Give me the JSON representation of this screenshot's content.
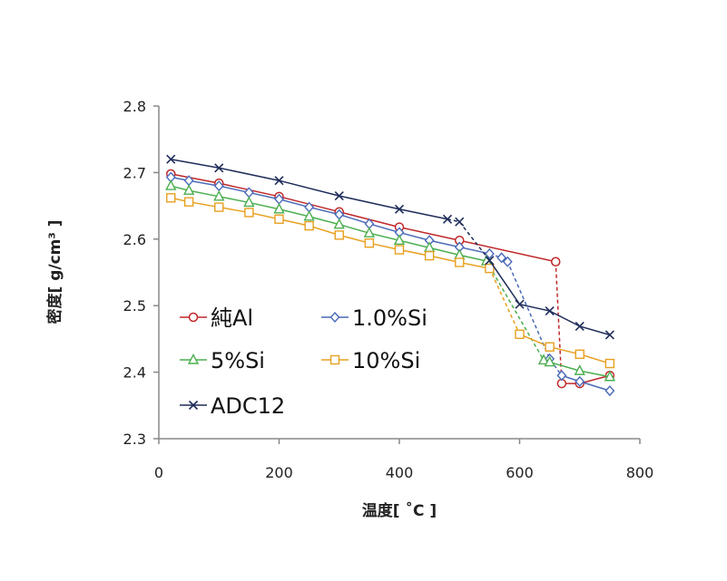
{
  "chart_data": {
    "type": "line",
    "xlabel": "温度[ ˚C ]",
    "ylabel": "密度[ g/cm³ ]",
    "xlim": [
      0,
      800
    ],
    "ylim": [
      2.3,
      2.8
    ],
    "xticks": [
      "0",
      "200",
      "400",
      "600",
      "800"
    ],
    "yticks": [
      "2.3",
      "2.4",
      "2.5",
      "2.6",
      "2.7",
      "2.8"
    ],
    "grid": false,
    "legend_position": "bottom-left",
    "series": [
      {
        "name": "純Al",
        "color": "#c0282a",
        "marker": "circle",
        "solid": [
          [
            20,
            2.698
          ],
          [
            100,
            2.684
          ],
          [
            200,
            2.664
          ],
          [
            300,
            2.641
          ],
          [
            400,
            2.618
          ],
          [
            500,
            2.598
          ],
          [
            660,
            2.566
          ]
        ],
        "dashed": [
          [
            660,
            2.566
          ],
          [
            670,
            2.383
          ]
        ],
        "solid_after": [
          [
            670,
            2.383
          ],
          [
            700,
            2.383
          ],
          [
            750,
            2.395
          ]
        ]
      },
      {
        "name": "1.0%Si",
        "color": "#4a6ab8",
        "marker": "diamond",
        "solid": [
          [
            20,
            2.693
          ],
          [
            50,
            2.688
          ],
          [
            100,
            2.68
          ],
          [
            150,
            2.67
          ],
          [
            200,
            2.66
          ],
          [
            250,
            2.648
          ],
          [
            300,
            2.637
          ],
          [
            350,
            2.623
          ],
          [
            400,
            2.61
          ],
          [
            450,
            2.598
          ],
          [
            500,
            2.588
          ],
          [
            550,
            2.578
          ]
        ],
        "dashed": [
          [
            550,
            2.578
          ],
          [
            570,
            2.572
          ],
          [
            580,
            2.566
          ],
          [
            650,
            2.42
          ],
          [
            670,
            2.395
          ]
        ],
        "solid_after": [
          [
            670,
            2.395
          ],
          [
            700,
            2.386
          ],
          [
            750,
            2.372
          ]
        ]
      },
      {
        "name": "5%Si",
        "color": "#4caf50",
        "marker": "triangle",
        "solid": [
          [
            20,
            2.68
          ],
          [
            50,
            2.673
          ],
          [
            100,
            2.664
          ],
          [
            150,
            2.655
          ],
          [
            200,
            2.645
          ],
          [
            250,
            2.634
          ],
          [
            300,
            2.622
          ],
          [
            350,
            2.609
          ],
          [
            400,
            2.598
          ],
          [
            450,
            2.587
          ],
          [
            500,
            2.576
          ],
          [
            545,
            2.567
          ]
        ],
        "dashed": [
          [
            545,
            2.567
          ],
          [
            640,
            2.418
          ]
        ],
        "solid_after": [
          [
            640,
            2.418
          ],
          [
            650,
            2.415
          ],
          [
            700,
            2.402
          ],
          [
            750,
            2.393
          ]
        ]
      },
      {
        "name": "10%Si",
        "color": "#e8a020",
        "marker": "square",
        "solid": [
          [
            20,
            2.662
          ],
          [
            50,
            2.656
          ],
          [
            100,
            2.648
          ],
          [
            150,
            2.64
          ],
          [
            200,
            2.63
          ],
          [
            250,
            2.62
          ],
          [
            300,
            2.606
          ],
          [
            350,
            2.594
          ],
          [
            400,
            2.584
          ],
          [
            450,
            2.575
          ],
          [
            500,
            2.565
          ],
          [
            550,
            2.556
          ]
        ],
        "dashed": [
          [
            550,
            2.556
          ],
          [
            600,
            2.457
          ]
        ],
        "solid_after": [
          [
            600,
            2.457
          ],
          [
            650,
            2.438
          ],
          [
            700,
            2.427
          ],
          [
            750,
            2.413
          ]
        ]
      },
      {
        "name": "ADC12",
        "color": "#1f2d5a",
        "marker": "x",
        "solid": [
          [
            20,
            2.72
          ],
          [
            100,
            2.707
          ],
          [
            200,
            2.688
          ],
          [
            300,
            2.665
          ],
          [
            400,
            2.645
          ],
          [
            480,
            2.63
          ]
        ],
        "dashed": [
          [
            480,
            2.63
          ],
          [
            500,
            2.626
          ],
          [
            550,
            2.568
          ]
        ],
        "solid_after": [
          [
            550,
            2.568
          ],
          [
            600,
            2.502
          ],
          [
            650,
            2.492
          ],
          [
            700,
            2.469
          ],
          [
            750,
            2.456
          ]
        ]
      }
    ]
  }
}
